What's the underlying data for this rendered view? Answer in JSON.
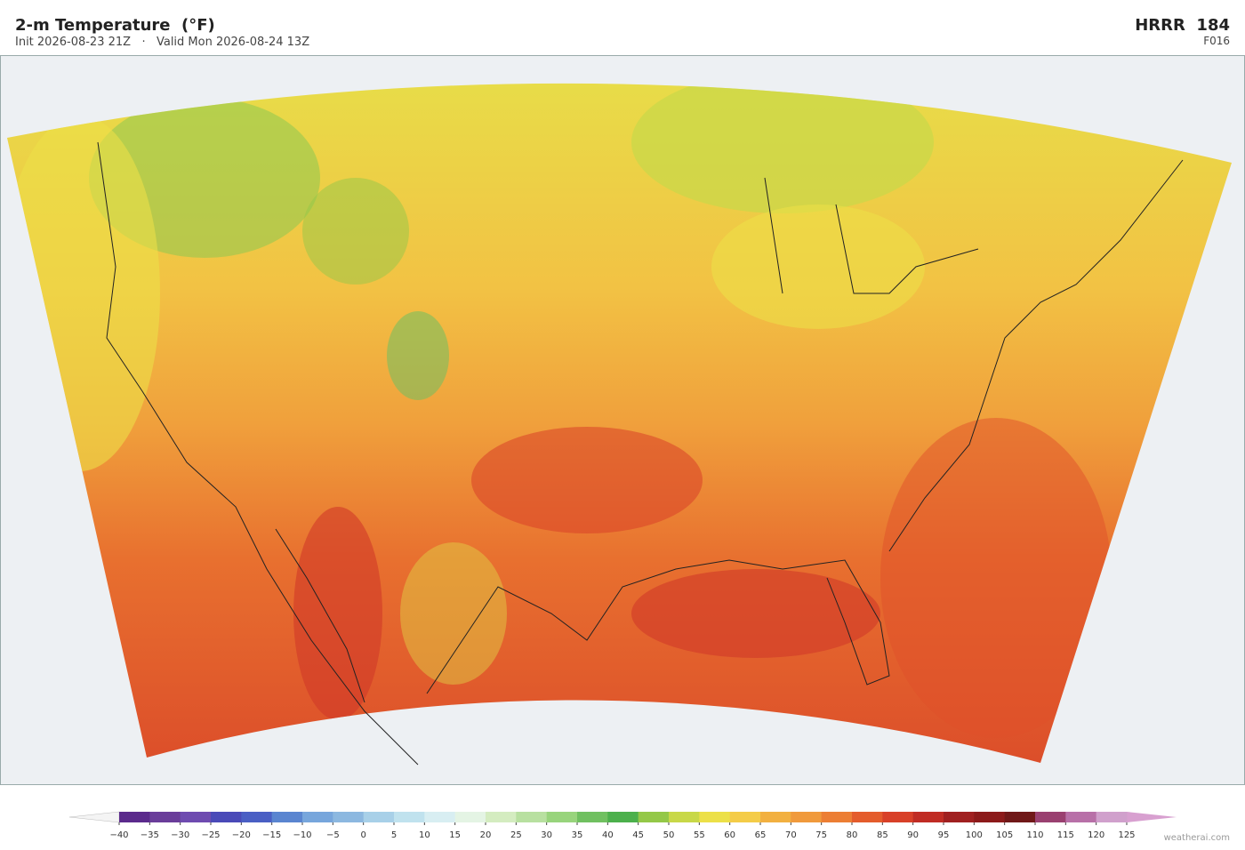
{
  "header": {
    "title": "2-m Temperature  (°F)",
    "subtitle": "Init 2026-08-23 21Z   ·   Valid Mon 2026-08-24 13Z",
    "model": "HRRR  184",
    "forecast_hour": "F016"
  },
  "colorbar": {
    "ticks": [
      {
        "value": -40,
        "label": "−40"
      },
      {
        "value": -35,
        "label": "−35"
      },
      {
        "value": -30,
        "label": "−30"
      },
      {
        "value": -25,
        "label": "−25"
      },
      {
        "value": -20,
        "label": "−20"
      },
      {
        "value": -15,
        "label": "−15"
      },
      {
        "value": -10,
        "label": "−10"
      },
      {
        "value": -5,
        "label": "−5"
      },
      0,
      5,
      10,
      15,
      20,
      25,
      30,
      35,
      40,
      45,
      50,
      55,
      60,
      65,
      70,
      75,
      80,
      85,
      90,
      95,
      100,
      105,
      110,
      115,
      120,
      125
    ],
    "colors": [
      "#5b2a8c",
      "#6a3d9a",
      "#6e4bb0",
      "#4a4ab8",
      "#4a5fc4",
      "#5a85d0",
      "#77a6dc",
      "#8cb8e0",
      "#a8d0e8",
      "#c0e2ee",
      "#d8eef2",
      "#e4f4e4",
      "#d4ecc0",
      "#b8e0a0",
      "#98d47c",
      "#70c060",
      "#4cb04c",
      "#94c848",
      "#c8d848",
      "#ece048",
      "#f4cc48",
      "#f2b040",
      "#f09a3c",
      "#ec7e34",
      "#e45c2c",
      "#d84028",
      "#c02c24",
      "#a02020",
      "#8c1a1a",
      "#701818",
      "#9a4070",
      "#b870a8",
      "#d0a0cc"
    ],
    "under_color": "#f4f4f4",
    "over_color": "#d8a0d0"
  },
  "watermark": "weatherai.com"
}
